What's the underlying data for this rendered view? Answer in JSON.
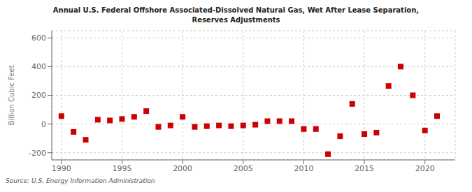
{
  "chart_data": {
    "type": "scatter",
    "title": "Annual U.S. Federal Offshore Associated-Dissolved Natural Gas, Wet After Lease Separation,\nReserves Adjustments",
    "ylabel": "Billion Cubic Feet",
    "annotations": [
      "Source: U.S. Energy Information Administration"
    ],
    "x": [
      1990,
      1991,
      1992,
      1993,
      1994,
      1995,
      1996,
      1997,
      1998,
      1999,
      2000,
      2001,
      2002,
      2003,
      2004,
      2005,
      2006,
      2007,
      2008,
      2009,
      2010,
      2011,
      2012,
      2013,
      2014,
      2015,
      2016,
      2017,
      2018,
      2019,
      2020,
      2021
    ],
    "values": [
      55,
      -55,
      -110,
      30,
      25,
      35,
      50,
      90,
      -20,
      -10,
      50,
      -20,
      -15,
      -10,
      -15,
      -10,
      -5,
      20,
      20,
      20,
      -35,
      -35,
      -210,
      -85,
      140,
      -70,
      -60,
      265,
      400,
      200,
      -45,
      55
    ],
    "color": "#cc0000",
    "marker": "square",
    "xlim": [
      1989.2,
      2022.5
    ],
    "xticks": [
      1990,
      1995,
      2000,
      2005,
      2010,
      2015,
      2020
    ],
    "ylim": [
      -250,
      650
    ],
    "yticks": [
      -200,
      0,
      200,
      400,
      600
    ],
    "grid": true
  }
}
